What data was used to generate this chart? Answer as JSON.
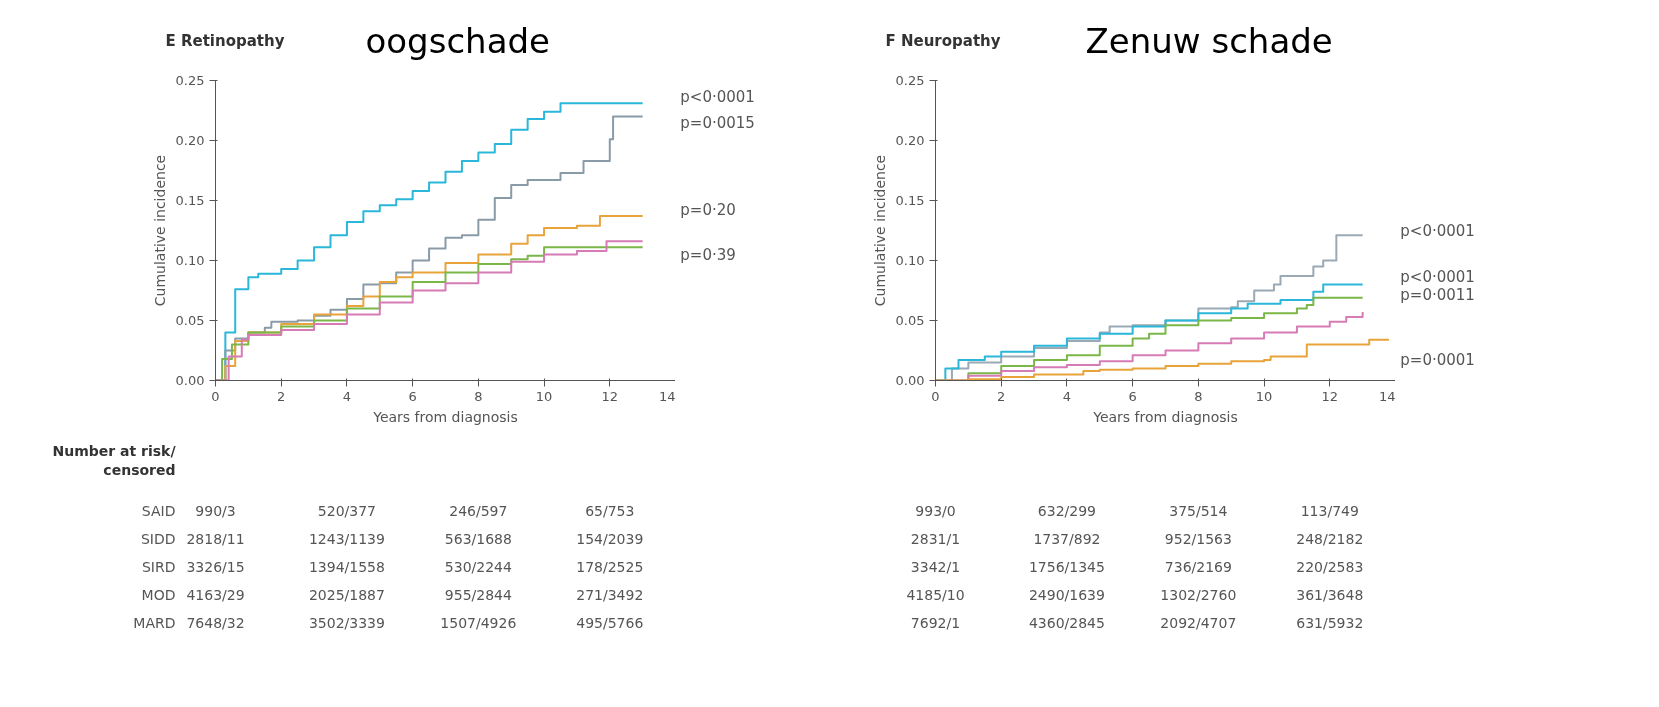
{
  "chart_data": [
    {
      "type": "step",
      "title": "E  Retinopathy",
      "subtitle": "oogschade",
      "xlabel": "Years from diagnosis",
      "ylabel": "Cumulative incidence",
      "xlim": [
        0,
        14
      ],
      "ylim": [
        0,
        0.25
      ],
      "xticks": [
        0,
        2,
        4,
        6,
        8,
        10,
        12,
        14
      ],
      "yticks": [
        {
          "value": 0,
          "label": "0.00"
        },
        {
          "value": 0.05,
          "label": "0.05"
        },
        {
          "value": 0.1,
          "label": "0.10"
        },
        {
          "value": 0.15,
          "label": "0.15"
        },
        {
          "value": 0.2,
          "label": "0.20"
        },
        {
          "value": 0.25,
          "label": "0.25"
        }
      ],
      "grid": false,
      "series": [
        {
          "color": "#2ab7d9",
          "x": [
            0,
            0.3,
            0.6,
            1,
            1.3,
            2,
            2.5,
            3,
            3.5,
            4,
            4.5,
            5,
            5.5,
            6,
            6.5,
            7,
            7.5,
            8,
            8.5,
            9,
            9.5,
            10,
            10.5,
            13
          ],
          "values": [
            0,
            0.04,
            0.076,
            0.086,
            0.089,
            0.093,
            0.1,
            0.111,
            0.121,
            0.132,
            0.141,
            0.146,
            0.151,
            0.158,
            0.165,
            0.174,
            0.183,
            0.19,
            0.197,
            0.209,
            0.218,
            0.224,
            0.231,
            0.231
          ]
        },
        {
          "color": "#8a9ba8",
          "x": [
            0,
            0.3,
            0.6,
            1,
            1.5,
            1.7,
            2.5,
            3,
            3.5,
            4,
            4.5,
            5,
            5.5,
            6,
            6.5,
            7,
            7.5,
            8,
            8.5,
            9,
            9.5,
            10.5,
            11.2,
            12,
            12.1,
            13
          ],
          "values": [
            0,
            0.025,
            0.035,
            0.04,
            0.044,
            0.049,
            0.05,
            0.054,
            0.059,
            0.068,
            0.08,
            0.081,
            0.09,
            0.1,
            0.11,
            0.119,
            0.121,
            0.134,
            0.152,
            0.163,
            0.167,
            0.173,
            0.183,
            0.201,
            0.22,
            0.22
          ]
        },
        {
          "color": "#e8a33a",
          "x": [
            0,
            0.3,
            0.6,
            1,
            2,
            3,
            4,
            4.5,
            5,
            5.5,
            6,
            7,
            8,
            9,
            9.5,
            10,
            11,
            11.7,
            13
          ],
          "values": [
            0,
            0.012,
            0.033,
            0.04,
            0.047,
            0.055,
            0.062,
            0.07,
            0.082,
            0.086,
            0.09,
            0.098,
            0.105,
            0.114,
            0.121,
            0.127,
            0.129,
            0.137,
            0.137
          ]
        },
        {
          "color": "#7ab648",
          "x": [
            0,
            0.2,
            0.5,
            1,
            2,
            3,
            4,
            5,
            6,
            7,
            8,
            9,
            9.5,
            10,
            13
          ],
          "values": [
            0,
            0.018,
            0.03,
            0.04,
            0.045,
            0.05,
            0.06,
            0.07,
            0.082,
            0.09,
            0.097,
            0.101,
            0.104,
            0.111,
            0.111
          ]
        },
        {
          "color": "#d67bb5",
          "x": [
            0,
            0.4,
            0.8,
            1,
            2,
            3,
            4,
            5,
            6,
            7,
            8,
            9,
            10,
            11,
            11.9,
            13
          ],
          "values": [
            0,
            0.02,
            0.034,
            0.038,
            0.042,
            0.047,
            0.055,
            0.065,
            0.075,
            0.081,
            0.09,
            0.099,
            0.105,
            0.108,
            0.116,
            0.116
          ]
        }
      ],
      "annotations": [
        "p<0·0001",
        "p=0·0015",
        "p=0·20",
        "p=0·39",
        "Number at risk/\ncensored",
        "SAID",
        "990/3",
        "520/377",
        "246/597",
        "65/753",
        "SIDD",
        "2818/11",
        "1243/1139",
        "563/1688",
        "154/2039",
        "SIRD",
        "3326/15",
        "1394/1558",
        "530/2244",
        "178/2525",
        "MOD",
        "4163/29",
        "2025/1887",
        "955/2844",
        "271/3492",
        "MARD",
        "7648/32",
        "3502/3339",
        "1507/4926",
        "495/5766"
      ]
    },
    {
      "type": "step",
      "title": "F  Neuropathy",
      "subtitle": "Zenuw schade",
      "xlabel": "Years from diagnosis",
      "ylabel": "Cumulative incidence",
      "xlim": [
        0,
        14
      ],
      "ylim": [
        0,
        0.25
      ],
      "xticks": [
        0,
        2,
        4,
        6,
        8,
        10,
        12,
        14
      ],
      "yticks": [
        {
          "value": 0,
          "label": "0.00"
        },
        {
          "value": 0.05,
          "label": "0.05"
        },
        {
          "value": 0.1,
          "label": "0.10"
        },
        {
          "value": 0.15,
          "label": "0.15"
        },
        {
          "value": 0.2,
          "label": "0.20"
        },
        {
          "value": 0.25,
          "label": "0.25"
        }
      ],
      "grid": false,
      "series": [
        {
          "color": "#9aa9b4",
          "x": [
            0,
            0.5,
            1,
            2,
            3,
            4,
            5,
            5.3,
            6,
            7,
            8,
            9,
            9.2,
            9.7,
            10.3,
            10.5,
            11.3,
            11.5,
            11.8,
            12.2,
            13
          ],
          "values": [
            0,
            0.01,
            0.015,
            0.02,
            0.027,
            0.033,
            0.04,
            0.045,
            0.046,
            0.05,
            0.06,
            0.061,
            0.066,
            0.075,
            0.08,
            0.087,
            0.087,
            0.095,
            0.1,
            0.121,
            0.121
          ]
        },
        {
          "color": "#2ab7d9",
          "x": [
            0,
            0.3,
            0.7,
            1.5,
            2,
            3,
            4,
            5,
            6,
            7,
            8,
            9,
            9.5,
            10.5,
            11.5,
            11.8,
            13
          ],
          "values": [
            0,
            0.01,
            0.017,
            0.02,
            0.024,
            0.029,
            0.035,
            0.039,
            0.045,
            0.05,
            0.056,
            0.06,
            0.064,
            0.067,
            0.074,
            0.08,
            0.08
          ]
        },
        {
          "color": "#7ab648",
          "x": [
            0,
            1,
            2,
            3,
            4,
            5,
            6,
            6.5,
            7,
            8,
            9,
            10,
            11,
            11.3,
            11.5,
            13
          ],
          "values": [
            0,
            0.006,
            0.012,
            0.017,
            0.021,
            0.029,
            0.035,
            0.039,
            0.046,
            0.05,
            0.052,
            0.056,
            0.06,
            0.063,
            0.069,
            0.069
          ]
        },
        {
          "color": "#d67bb5",
          "x": [
            0,
            1,
            2,
            3,
            4,
            5,
            6,
            7,
            8,
            9,
            10,
            11,
            12,
            12.5,
            13
          ],
          "values": [
            0,
            0.004,
            0.008,
            0.011,
            0.013,
            0.016,
            0.021,
            0.025,
            0.031,
            0.035,
            0.04,
            0.045,
            0.049,
            0.053,
            0.057
          ]
        },
        {
          "color": "#e8a33a",
          "x": [
            0,
            1,
            2,
            3,
            4.5,
            5,
            6,
            7,
            8,
            9,
            10,
            10.2,
            11.3,
            13.2,
            13.8
          ],
          "values": [
            0,
            0.001,
            0.003,
            0.005,
            0.008,
            0.009,
            0.01,
            0.012,
            0.014,
            0.016,
            0.017,
            0.02,
            0.03,
            0.034,
            0.034
          ]
        }
      ],
      "annotations": [
        "p<0·0001",
        "p<0·0001",
        "p=0·0011",
        "p=0·0001",
        "993/0",
        "632/299",
        "375/514",
        "113/749",
        "2831/1",
        "1737/892",
        "952/1563",
        "248/2182",
        "3342/1",
        "1756/1345",
        "736/2169",
        "220/2583",
        "4185/10",
        "2490/1639",
        "1302/2760",
        "361/3648",
        "7692/1",
        "4360/2845",
        "2092/4707",
        "631/5932"
      ]
    }
  ]
}
